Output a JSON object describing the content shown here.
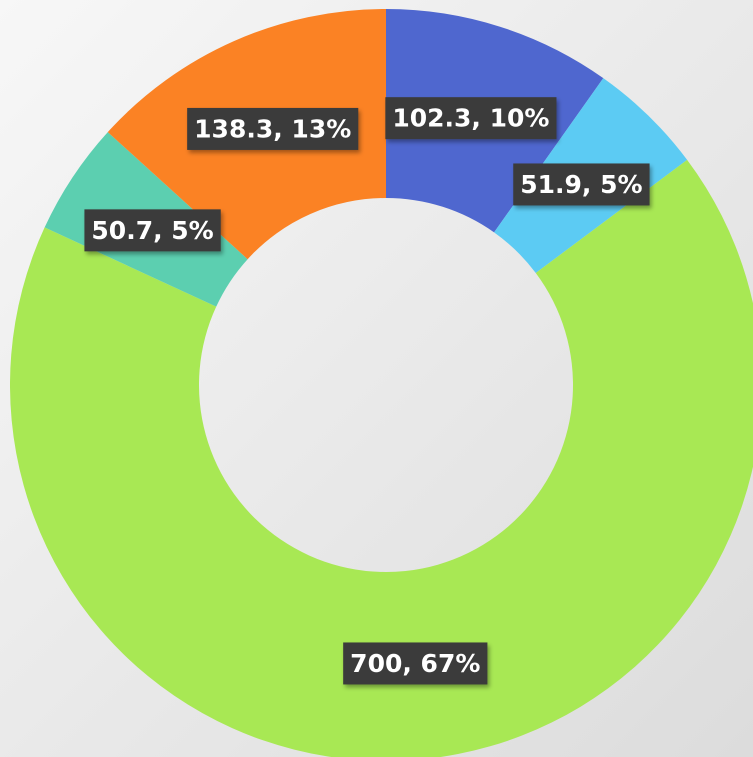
{
  "chart_data": {
    "type": "donut",
    "values": [
      102.3,
      51.9,
      700,
      50.7,
      138.3
    ],
    "value_labels": [
      "102.3, 10%",
      "51.9, 5%",
      "700, 67%",
      "50.7, 5%",
      "138.3, 13%"
    ],
    "colors": [
      "#4f67cf",
      "#5ccbf3",
      "#a8e854",
      "#5ccfb0",
      "#fb8224"
    ]
  }
}
